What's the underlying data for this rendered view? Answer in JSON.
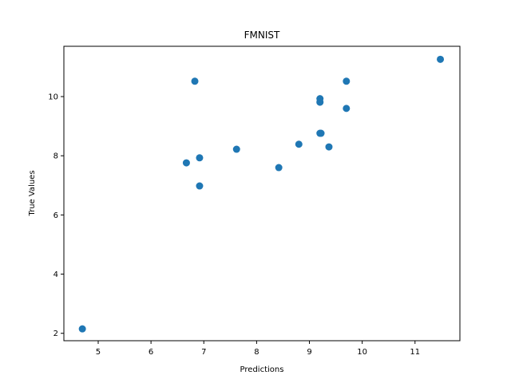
{
  "chart_data": {
    "type": "scatter",
    "title": "FMNIST",
    "xlabel": "Predictions",
    "ylabel": "True Values",
    "xlim": [
      4.35,
      11.85
    ],
    "ylim": [
      1.75,
      11.7
    ],
    "xticks": [
      5,
      6,
      7,
      8,
      9,
      10,
      11
    ],
    "yticks": [
      2,
      4,
      6,
      8,
      10
    ],
    "grid": false,
    "legend": "none",
    "marker_color": "#1f77b4",
    "points": [
      {
        "x": 4.7,
        "y": 2.15
      },
      {
        "x": 6.67,
        "y": 7.76
      },
      {
        "x": 6.83,
        "y": 10.52
      },
      {
        "x": 6.92,
        "y": 7.93
      },
      {
        "x": 6.92,
        "y": 6.98
      },
      {
        "x": 7.62,
        "y": 8.22
      },
      {
        "x": 8.42,
        "y": 7.6
      },
      {
        "x": 8.8,
        "y": 8.39
      },
      {
        "x": 9.2,
        "y": 9.93
      },
      {
        "x": 9.2,
        "y": 9.81
      },
      {
        "x": 9.2,
        "y": 8.76
      },
      {
        "x": 9.22,
        "y": 8.76
      },
      {
        "x": 9.37,
        "y": 8.3
      },
      {
        "x": 9.7,
        "y": 10.52
      },
      {
        "x": 9.7,
        "y": 9.6
      },
      {
        "x": 11.48,
        "y": 11.26
      }
    ]
  }
}
